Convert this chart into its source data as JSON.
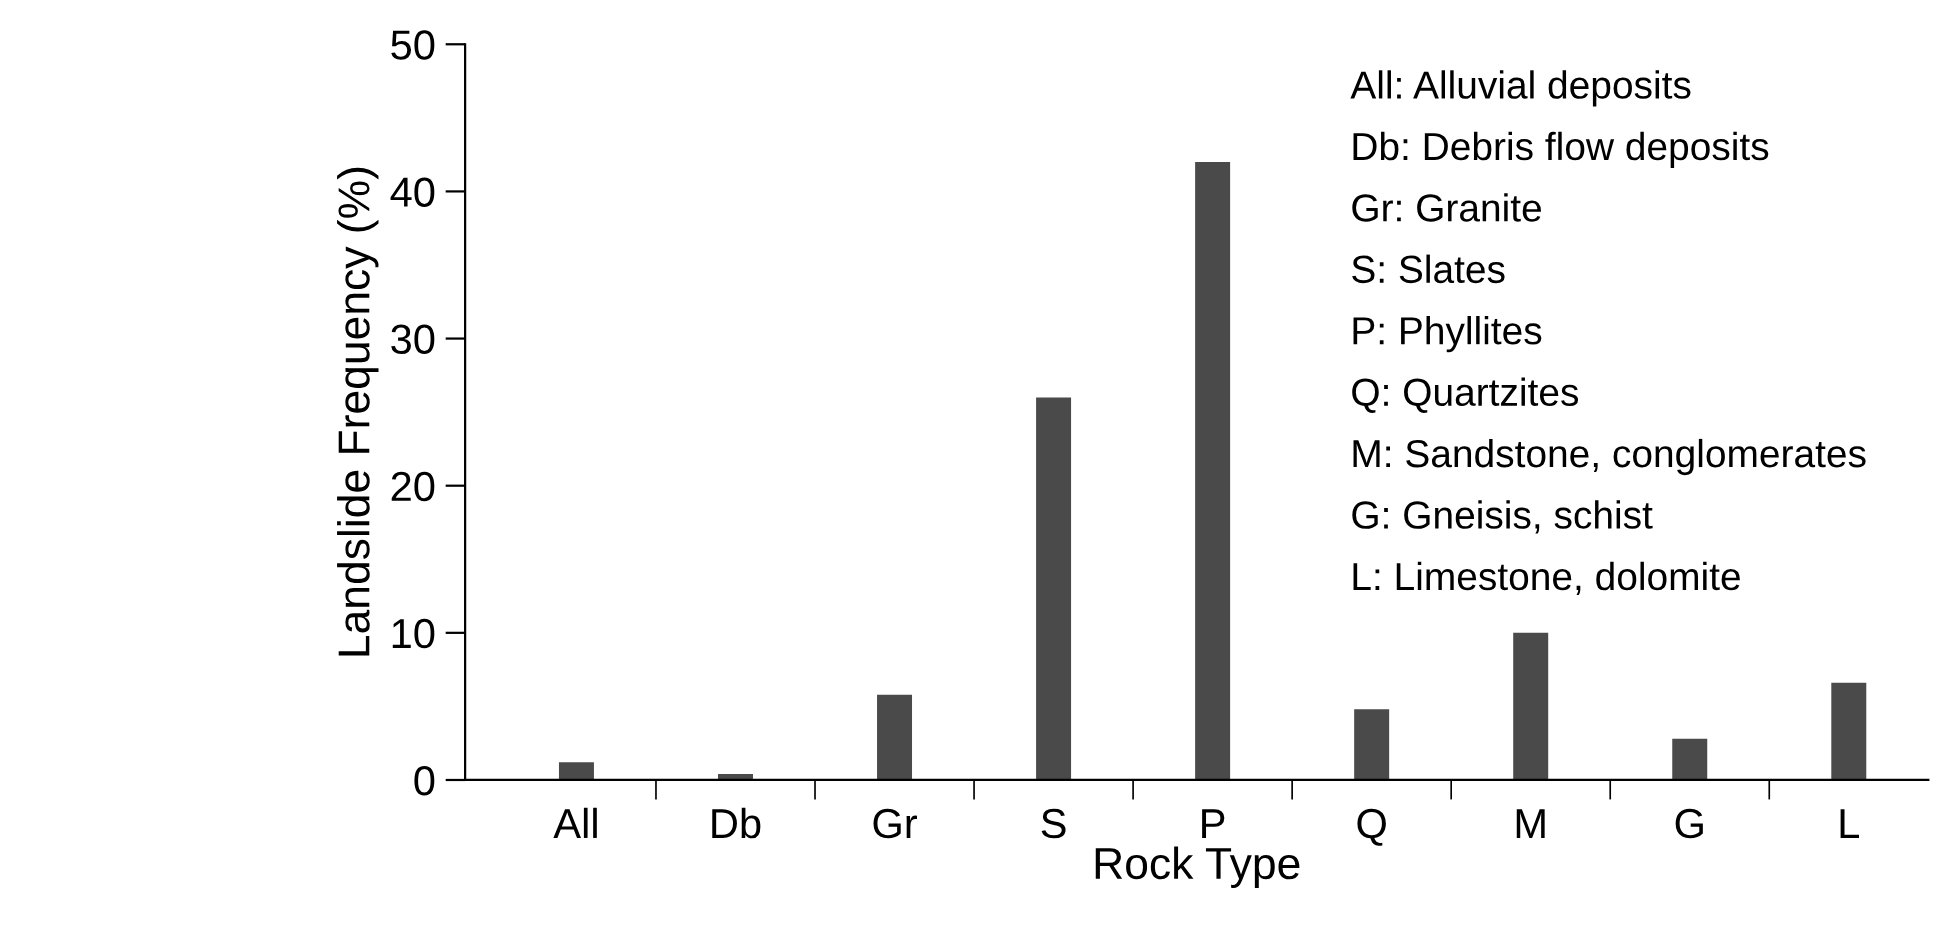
{
  "chart_data": {
    "type": "bar",
    "xlabel": "Rock Type",
    "ylabel": "Landslide Frequency (%)",
    "categories": [
      "All",
      "Db",
      "Gr",
      "S",
      "P",
      "Q",
      "M",
      "G",
      "L"
    ],
    "values": [
      1.2,
      0.4,
      5.8,
      26,
      42,
      4.8,
      10,
      2.8,
      6.6
    ],
    "color": "#4a4a4a",
    "ylim": [
      0,
      50
    ],
    "yticks": [
      0,
      10,
      20,
      30,
      40,
      50
    ],
    "grid": false,
    "legend": false,
    "annotations": [
      "All: Alluvial deposits",
      "Db: Debris flow deposits",
      "Gr: Granite",
      "S: Slates",
      "P: Phyllites",
      "Q: Quartzites",
      "M: Sandstone, conglomerates",
      "G: Gneisis, schist",
      "L: Limestone, dolomite"
    ]
  }
}
